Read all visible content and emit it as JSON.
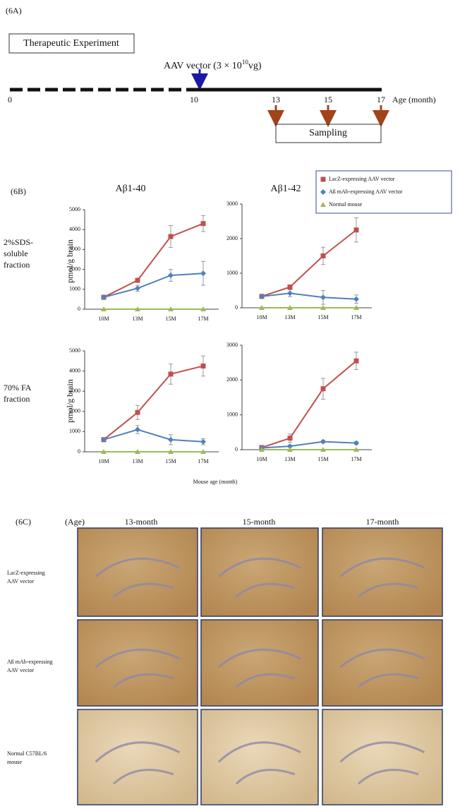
{
  "panel_a": {
    "label": "(6A)",
    "box": "Therapeutic Experiment",
    "vector_text": "AAV vector (3 × 10",
    "vector_sup": "10",
    "vector_tail": "vg)",
    "ticks": [
      "0",
      "10",
      "13",
      "15",
      "17"
    ],
    "axis_label": "Age (month)",
    "sampling": "Sampling"
  },
  "panel_b": {
    "label": "(6B)",
    "row_labels": [
      [
        "2%SDS-",
        "soluble",
        "fraction"
      ],
      [
        "70% FA",
        "fraction"
      ]
    ],
    "x_label": "Mouse age (month)"
  },
  "chart_data": [
    {
      "type": "line",
      "title": "Aβ1-40",
      "y_label": "pmol/g brain",
      "categories": [
        "10M",
        "13M",
        "15M",
        "17M"
      ],
      "ylim": [
        0,
        5000
      ],
      "yticks": [
        0,
        1000,
        2000,
        3000,
        4000,
        5000
      ],
      "series": [
        {
          "name": "LacZ-expressing  AAV vector",
          "color": "#c0504d",
          "marker": "square",
          "values": [
            600,
            1450,
            3650,
            4300
          ],
          "errors": [
            50,
            100,
            550,
            400
          ]
        },
        {
          "name": "Aß mAb-expressing  AAV vector",
          "color": "#4f81bd",
          "marker": "diamond",
          "values": [
            600,
            1050,
            1700,
            1800
          ],
          "errors": [
            50,
            150,
            300,
            600
          ]
        },
        {
          "name": "Normal mouse",
          "color": "#9bbb59",
          "marker": "triangle",
          "values": [
            0,
            0,
            0,
            0
          ]
        }
      ]
    },
    {
      "type": "line",
      "title": "Aβ1-42",
      "categories": [
        "10M",
        "13M",
        "15M",
        "17M"
      ],
      "ylim": [
        0,
        3000
      ],
      "yticks": [
        0,
        1000,
        2000,
        3000
      ],
      "series": [
        {
          "name": "LacZ-expressing  AAV vector",
          "color": "#c0504d",
          "marker": "square",
          "values": [
            330,
            600,
            1500,
            2250
          ],
          "errors": [
            30,
            60,
            250,
            350
          ]
        },
        {
          "name": "Aß mAb-expressing  AAV vector",
          "color": "#4f81bd",
          "marker": "diamond",
          "values": [
            330,
            420,
            300,
            250
          ],
          "errors": [
            30,
            100,
            200,
            120
          ]
        },
        {
          "name": "Normal mouse",
          "color": "#9bbb59",
          "marker": "triangle",
          "values": [
            0,
            0,
            0,
            0
          ]
        }
      ]
    },
    {
      "type": "line",
      "y_label": "pmol/g brain",
      "categories": [
        "10M",
        "13M",
        "15M",
        "17M"
      ],
      "ylim": [
        0,
        5000
      ],
      "yticks": [
        0,
        1000,
        2000,
        3000,
        4000,
        5000
      ],
      "series": [
        {
          "name": "LacZ-expressing  AAV vector",
          "color": "#c0504d",
          "marker": "square",
          "values": [
            600,
            1950,
            3850,
            4250
          ],
          "errors": [
            50,
            350,
            500,
            500
          ]
        },
        {
          "name": "Aß mAb-expressing  AAV vector",
          "color": "#4f81bd",
          "marker": "diamond",
          "values": [
            600,
            1100,
            600,
            500
          ],
          "errors": [
            50,
            200,
            250,
            150
          ]
        },
        {
          "name": "Normal mouse",
          "color": "#9bbb59",
          "marker": "triangle",
          "values": [
            0,
            0,
            0,
            0
          ]
        }
      ]
    },
    {
      "type": "line",
      "categories": [
        "10M",
        "13M",
        "15M",
        "17M"
      ],
      "ylim": [
        0,
        3000
      ],
      "yticks": [
        0,
        1000,
        2000,
        3000
      ],
      "series": [
        {
          "name": "LacZ-expressing  AAV vector",
          "color": "#c0504d",
          "marker": "square",
          "values": [
            60,
            330,
            1750,
            2550
          ],
          "errors": [
            20,
            120,
            300,
            250
          ]
        },
        {
          "name": "Aß mAb-expressing  AAV vector",
          "color": "#4f81bd",
          "marker": "diamond",
          "values": [
            50,
            100,
            230,
            190
          ],
          "errors": [
            20,
            30,
            40,
            40
          ]
        },
        {
          "name": "Normal mouse",
          "color": "#9bbb59",
          "marker": "triangle",
          "values": [
            0,
            0,
            0,
            0
          ]
        }
      ]
    }
  ],
  "panel_c": {
    "label": "(6C)",
    "age_label": "(Age)",
    "columns": [
      "13-month",
      "15-month",
      "17-month"
    ],
    "rows": [
      [
        "LacZ-expressing",
        "AAV vector"
      ],
      [
        "Aß mAb-expressing",
        "AAV vector"
      ],
      [
        "Normal C57BL/6",
        "mouse"
      ]
    ]
  }
}
